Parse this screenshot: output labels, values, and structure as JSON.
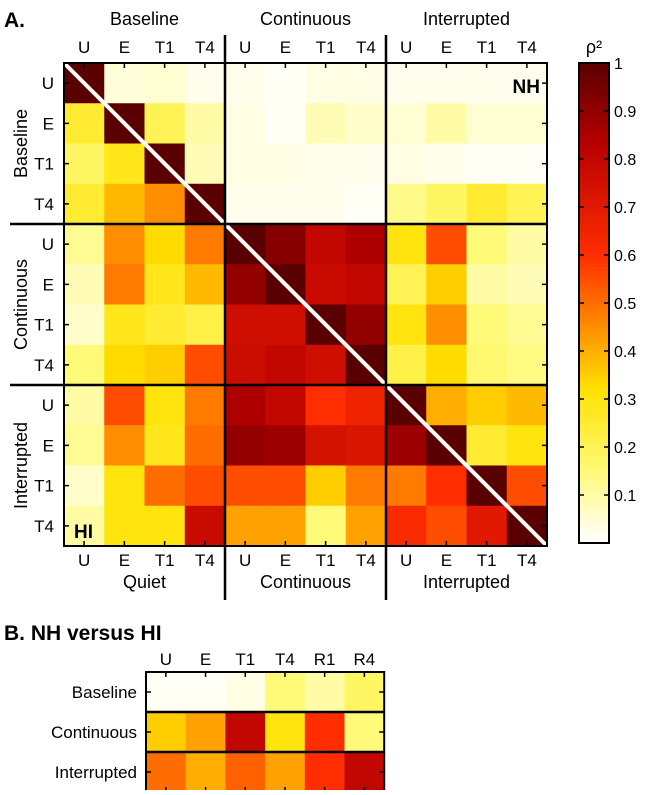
{
  "panel_a": {
    "letter": "A.",
    "top_groups": [
      "Baseline",
      "Continuous",
      "Interrupted"
    ],
    "bottom_groups": [
      "Quiet",
      "Continuous",
      "Interrupted"
    ],
    "left_groups": [
      "Baseline",
      "Continuous",
      "Interrupted"
    ],
    "upper_label": "NH",
    "lower_label": "HI"
  },
  "panel_b": {
    "title": "B. NH versus HI"
  },
  "colorbar": {
    "label": "ρ²",
    "ticks": [
      "0.1",
      "0.2",
      "0.3",
      "0.4",
      "0.5",
      "0.6",
      "0.7",
      "0.8",
      "0.9",
      "1"
    ]
  },
  "chart_data": [
    {
      "type": "heatmap",
      "name": "A",
      "conditions": [
        "U",
        "E",
        "T1",
        "T4",
        "U",
        "E",
        "T1",
        "T4",
        "U",
        "E",
        "T1",
        "T4"
      ],
      "row_labels": [
        "U",
        "E",
        "T1",
        "T4",
        "U",
        "E",
        "T1",
        "T4",
        "U",
        "E",
        "T1",
        "T4"
      ],
      "col_labels": [
        "U",
        "E",
        "T1",
        "T4",
        "U",
        "E",
        "T1",
        "T4",
        "U",
        "E",
        "T1",
        "T4"
      ],
      "colormap": "hot (reversed)",
      "vmin": 0,
      "vmax": 1,
      "values": [
        [
          1.0,
          0.04,
          0.05,
          0.02,
          0.02,
          0.01,
          0.03,
          0.03,
          0.02,
          0.02,
          0.02,
          0.02
        ],
        [
          0.25,
          1.0,
          0.2,
          0.1,
          0.03,
          0.01,
          0.08,
          0.06,
          0.05,
          0.1,
          0.05,
          0.05
        ],
        [
          0.18,
          0.28,
          1.0,
          0.08,
          0.03,
          0.03,
          0.02,
          0.02,
          0.03,
          0.02,
          0.01,
          0.01
        ],
        [
          0.25,
          0.38,
          0.45,
          1.0,
          0.02,
          0.02,
          0.02,
          0.01,
          0.13,
          0.18,
          0.25,
          0.2
        ],
        [
          0.12,
          0.45,
          0.33,
          0.48,
          1.0,
          0.92,
          0.8,
          0.85,
          0.3,
          0.55,
          0.15,
          0.1
        ],
        [
          0.08,
          0.48,
          0.28,
          0.38,
          0.9,
          1.0,
          0.78,
          0.8,
          0.2,
          0.35,
          0.1,
          0.08
        ],
        [
          0.06,
          0.28,
          0.25,
          0.22,
          0.76,
          0.76,
          1.0,
          0.9,
          0.3,
          0.45,
          0.15,
          0.12
        ],
        [
          0.15,
          0.33,
          0.35,
          0.55,
          0.77,
          0.8,
          0.76,
          1.0,
          0.22,
          0.33,
          0.16,
          0.14
        ],
        [
          0.1,
          0.55,
          0.3,
          0.48,
          0.85,
          0.8,
          0.6,
          0.65,
          1.0,
          0.4,
          0.35,
          0.38
        ],
        [
          0.12,
          0.45,
          0.28,
          0.5,
          0.9,
          0.88,
          0.74,
          0.72,
          0.88,
          1.0,
          0.25,
          0.3
        ],
        [
          0.06,
          0.3,
          0.5,
          0.55,
          0.55,
          0.55,
          0.35,
          0.48,
          0.48,
          0.6,
          1.0,
          0.55
        ],
        [
          0.1,
          0.3,
          0.3,
          0.78,
          0.42,
          0.42,
          0.15,
          0.42,
          0.62,
          0.55,
          0.7,
          1.0
        ]
      ]
    },
    {
      "type": "heatmap",
      "name": "B",
      "col_labels": [
        "U",
        "E",
        "T1",
        "T4",
        "R1",
        "R4"
      ],
      "row_labels": [
        "Baseline",
        "Continuous",
        "Interrupted"
      ],
      "colormap": "hot (reversed)",
      "vmin": 0,
      "vmax": 1,
      "values": [
        [
          0.01,
          0.01,
          0.03,
          0.15,
          0.1,
          0.18
        ],
        [
          0.35,
          0.42,
          0.8,
          0.3,
          0.6,
          0.15
        ],
        [
          0.5,
          0.4,
          0.52,
          0.42,
          0.6,
          0.8
        ]
      ]
    }
  ]
}
